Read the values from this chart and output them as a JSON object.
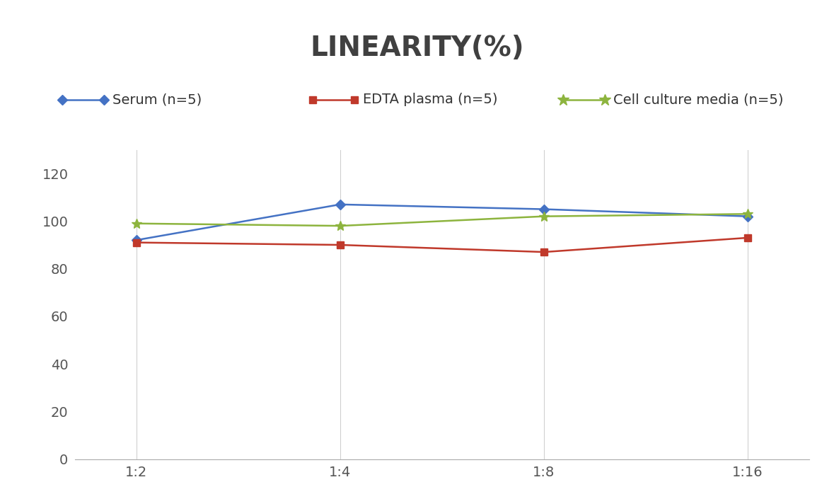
{
  "title": "LINEARITY(%)",
  "title_fontsize": 28,
  "title_fontweight": "bold",
  "title_color": "#404040",
  "x_labels": [
    "1:2",
    "1:4",
    "1:8",
    "1:16"
  ],
  "x_values": [
    0,
    1,
    2,
    3
  ],
  "series": [
    {
      "label": "Serum (n=5)",
      "values": [
        92,
        107,
        105,
        102
      ],
      "color": "#4472C4",
      "marker": "D",
      "markersize": 7,
      "linewidth": 1.8
    },
    {
      "label": "EDTA plasma (n=5)",
      "values": [
        91,
        90,
        87,
        93
      ],
      "color": "#C0392B",
      "marker": "s",
      "markersize": 7,
      "linewidth": 1.8
    },
    {
      "label": "Cell culture media (n=5)",
      "values": [
        99,
        98,
        102,
        103
      ],
      "color": "#8DB43E",
      "marker": "*",
      "markersize": 10,
      "linewidth": 1.8
    }
  ],
  "ylim": [
    0,
    130
  ],
  "yticks": [
    0,
    20,
    40,
    60,
    80,
    100,
    120
  ],
  "grid_color": "#D0D0D0",
  "grid_linewidth": 0.8,
  "background_color": "#FFFFFF",
  "legend_fontsize": 14,
  "tick_fontsize": 14
}
